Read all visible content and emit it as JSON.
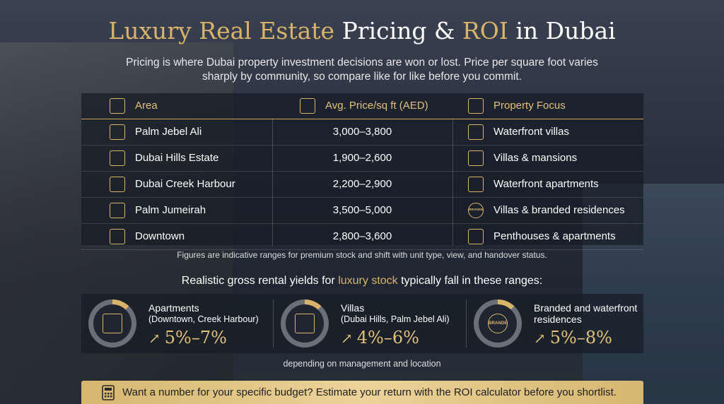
{
  "header": {
    "title": [
      "Luxury Real Estate",
      "Pricing &",
      "ROI",
      "in Dubai"
    ],
    "subtitle": "Pricing is where Dubai property investment decisions are won or lost. Price per square foot varies sharply by community, so compare like for like before you commit."
  },
  "table": {
    "columns": [
      "Area",
      "Avg. Price/sq ft (AED)",
      "Property Focus"
    ],
    "rows": [
      [
        "Palm Jebel Ali",
        "3,000–3,800",
        "Waterfront villas"
      ],
      [
        "Dubai Hills Estate",
        "1,900–2,600",
        "Villas & mansions"
      ],
      [
        "Dubai Creek Harbour",
        "2,200–2,900",
        "Waterfront apartments"
      ],
      [
        "Palm Jumeirah",
        "3,500–5,000",
        "Villas & branded residences"
      ],
      [
        "Downtown",
        "2,800–3,600",
        "Penthouses & apartments"
      ]
    ],
    "icon_label": "BRANDED",
    "footnote": "Figures are indicative ranges for premium stock and shift with unit type, view, and handover status."
  },
  "yields": {
    "heading": [
      "Realistic gross rental yields for",
      "luxury stock",
      "typically fall in these ranges:"
    ],
    "cards": [
      {
        "title": "Apartments",
        "detail": "(Downtown, Creek Harbour)",
        "range": "5%–7%"
      },
      {
        "title": "Villas",
        "detail": "(Dubai Hills, Palm Jebel Ali)",
        "range": "4%–6%"
      },
      {
        "title": "Branded and waterfront residences",
        "detail": null,
        "range": "5%–8%",
        "icon_label": "BRANDED"
      }
    ],
    "footer": "depending on management and location"
  },
  "cta": "Want a number for your specific budget? Estimate your return with the ROI calculator before you shortlist."
}
